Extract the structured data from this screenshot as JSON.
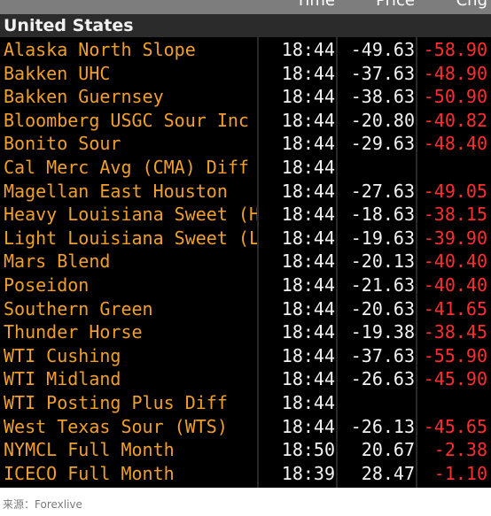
{
  "header": {
    "time_label": "Time",
    "price_label": "Price",
    "chg_label": "Chg"
  },
  "section": {
    "title": "United States"
  },
  "rows": [
    {
      "name": "Alaska North Slope",
      "time": "18:44",
      "price": "-49.63",
      "chg": "-58.90"
    },
    {
      "name": "Bakken UHC",
      "time": "18:44",
      "price": "-37.63",
      "chg": "-48.90"
    },
    {
      "name": "Bakken Guernsey",
      "time": "18:44",
      "price": "-38.63",
      "chg": "-50.90"
    },
    {
      "name": "Bloomberg USGC Sour Inc",
      "time": "18:44",
      "price": "-20.80",
      "chg": "-40.82"
    },
    {
      "name": "Bonito Sour",
      "time": "18:44",
      "price": "-29.63",
      "chg": "-48.40"
    },
    {
      "name": "Cal Merc Avg (CMA) Diff",
      "time": "18:44",
      "price": "",
      "chg": ""
    },
    {
      "name": "Magellan East Houston",
      "time": "18:44",
      "price": "-27.63",
      "chg": "-49.05"
    },
    {
      "name": "Heavy Louisiana Sweet (H",
      "time": "18:44",
      "price": "-18.63",
      "chg": "-38.15"
    },
    {
      "name": "Light Louisiana Sweet (LL",
      "time": "18:44",
      "price": "-19.63",
      "chg": "-39.90"
    },
    {
      "name": "Mars Blend",
      "time": "18:44",
      "price": "-20.13",
      "chg": "-40.40"
    },
    {
      "name": "Poseidon",
      "time": "18:44",
      "price": "-21.63",
      "chg": "-40.40"
    },
    {
      "name": "Southern Green",
      "time": "18:44",
      "price": "-20.63",
      "chg": "-41.65"
    },
    {
      "name": "Thunder Horse",
      "time": "18:44",
      "price": "-19.38",
      "chg": "-38.45"
    },
    {
      "name": "WTI Cushing",
      "time": "18:44",
      "price": "-37.63",
      "chg": "-55.90"
    },
    {
      "name": "WTI Midland",
      "time": "18:44",
      "price": "-26.63",
      "chg": "-45.90"
    },
    {
      "name": "WTI Posting Plus Diff",
      "time": "18:44",
      "price": "",
      "chg": ""
    },
    {
      "name": "West Texas Sour (WTS)",
      "time": "18:44",
      "price": "-26.13",
      "chg": "-45.65"
    },
    {
      "name": "NYMCL Full Month",
      "time": "18:50",
      "price": "20.67",
      "chg": "-2.38"
    },
    {
      "name": "ICECO Full Month",
      "time": "18:39",
      "price": "28.47",
      "chg": "-1.10"
    }
  ],
  "source": "来源：Forexlive"
}
